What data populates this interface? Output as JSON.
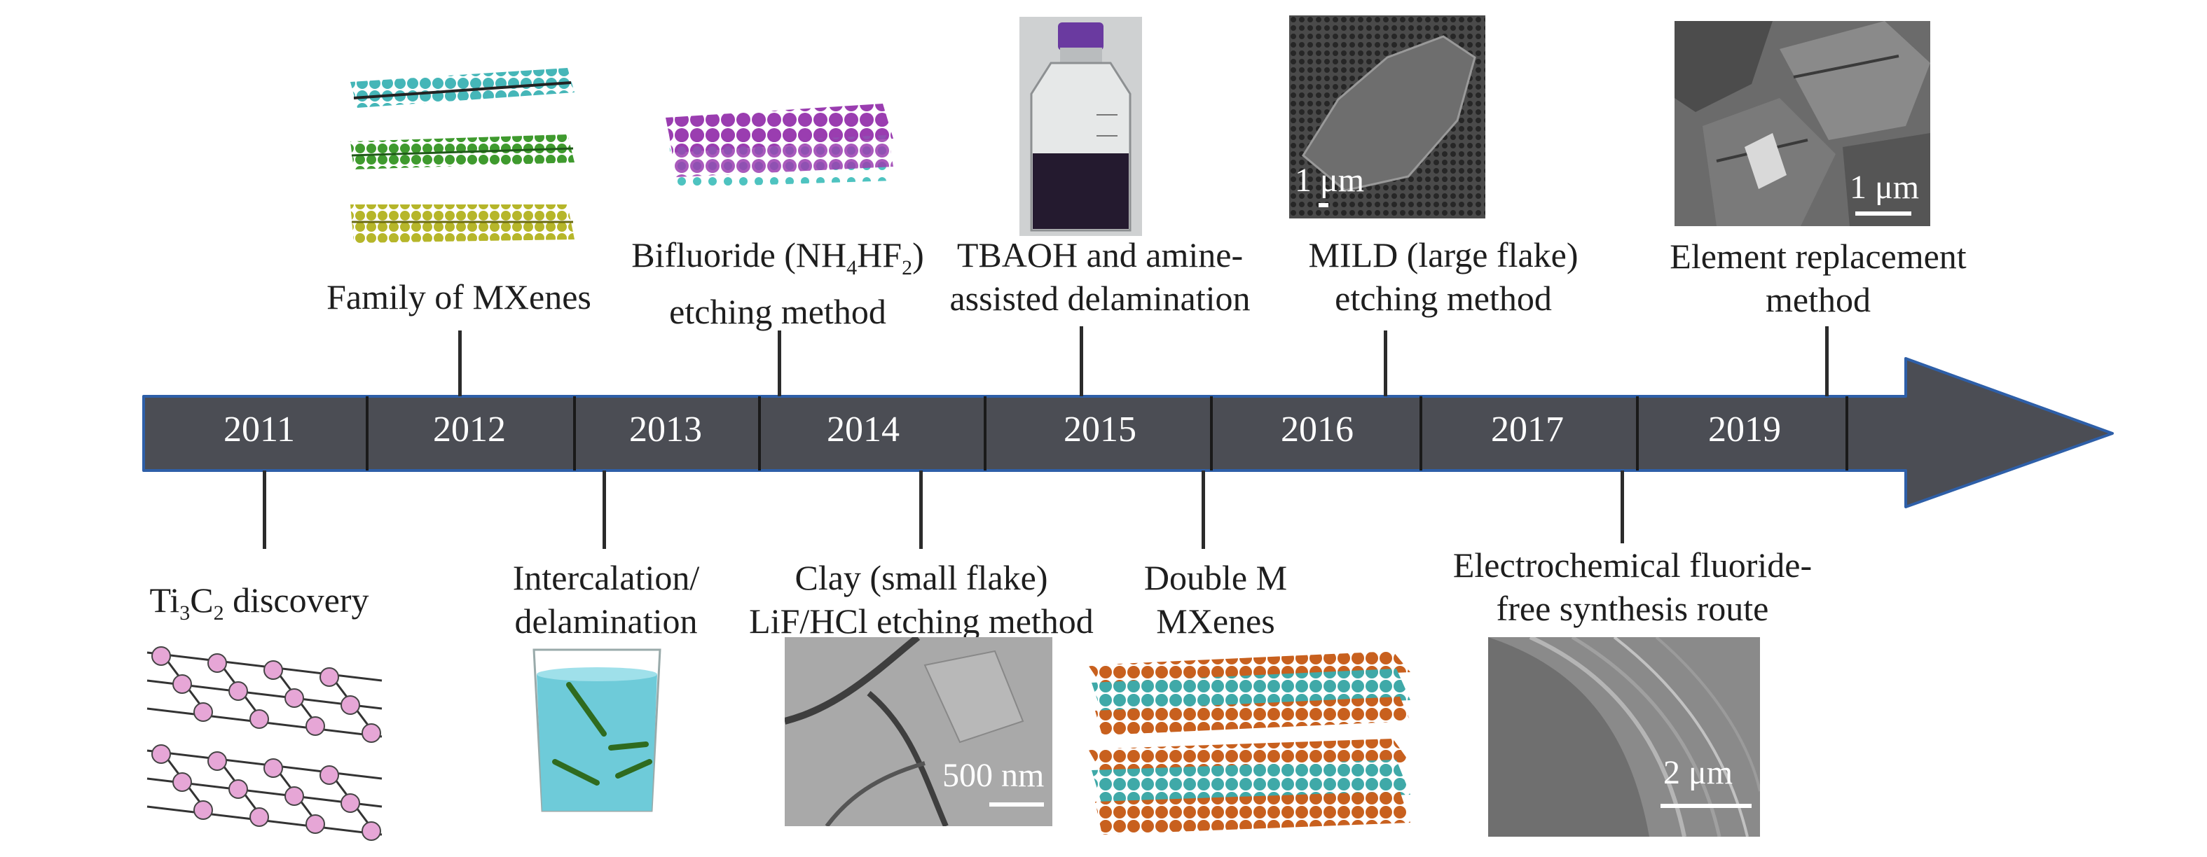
{
  "timeline": {
    "years": [
      "2011",
      "2012",
      "2013",
      "2014",
      "2015",
      "2016",
      "2017",
      "2019"
    ],
    "arrow_color": "#4b4d54",
    "arrow_edge_color": "#2e5fa8"
  },
  "events_top": [
    {
      "year": "2012",
      "lines": [
        "Family of MXenes"
      ]
    },
    {
      "year": "2014",
      "lines": [
        "Bifluoride (NH4HF2)",
        "etching method"
      ]
    },
    {
      "year": "2015",
      "lines": [
        "TBAOH and amine-",
        "assisted delamination"
      ]
    },
    {
      "year": "2016",
      "lines": [
        "MILD (large flake)",
        "etching method"
      ]
    },
    {
      "year": "2019",
      "lines": [
        "Element replacement",
        "method"
      ]
    }
  ],
  "events_bottom": [
    {
      "year": "2011",
      "lines": [
        "Ti3C2 discovery"
      ]
    },
    {
      "year": "2013",
      "lines": [
        "Intercalation/",
        "delamination"
      ]
    },
    {
      "year": "2014",
      "lines": [
        "Clay (small flake)",
        "LiF/HCl etching method"
      ]
    },
    {
      "year": "2015",
      "lines": [
        "Double M",
        "MXenes"
      ]
    },
    {
      "year": "2017",
      "lines": [
        "Electrochemical fluoride-",
        "free synthesis route"
      ]
    }
  ],
  "bifluoride_formula": {
    "pre": "Bifluoride (NH",
    "sub1": "4",
    "mid": "HF",
    "sub2": "2",
    "post": ")"
  },
  "ti3c2_formula": {
    "pre": "Ti",
    "sub1": "3",
    "mid": "C",
    "sub2": "2",
    "post": " discovery"
  },
  "scale_bars": {
    "mild": "1 μm",
    "element": "1 μm",
    "clay": "500 nm",
    "electro": "2 μm"
  }
}
